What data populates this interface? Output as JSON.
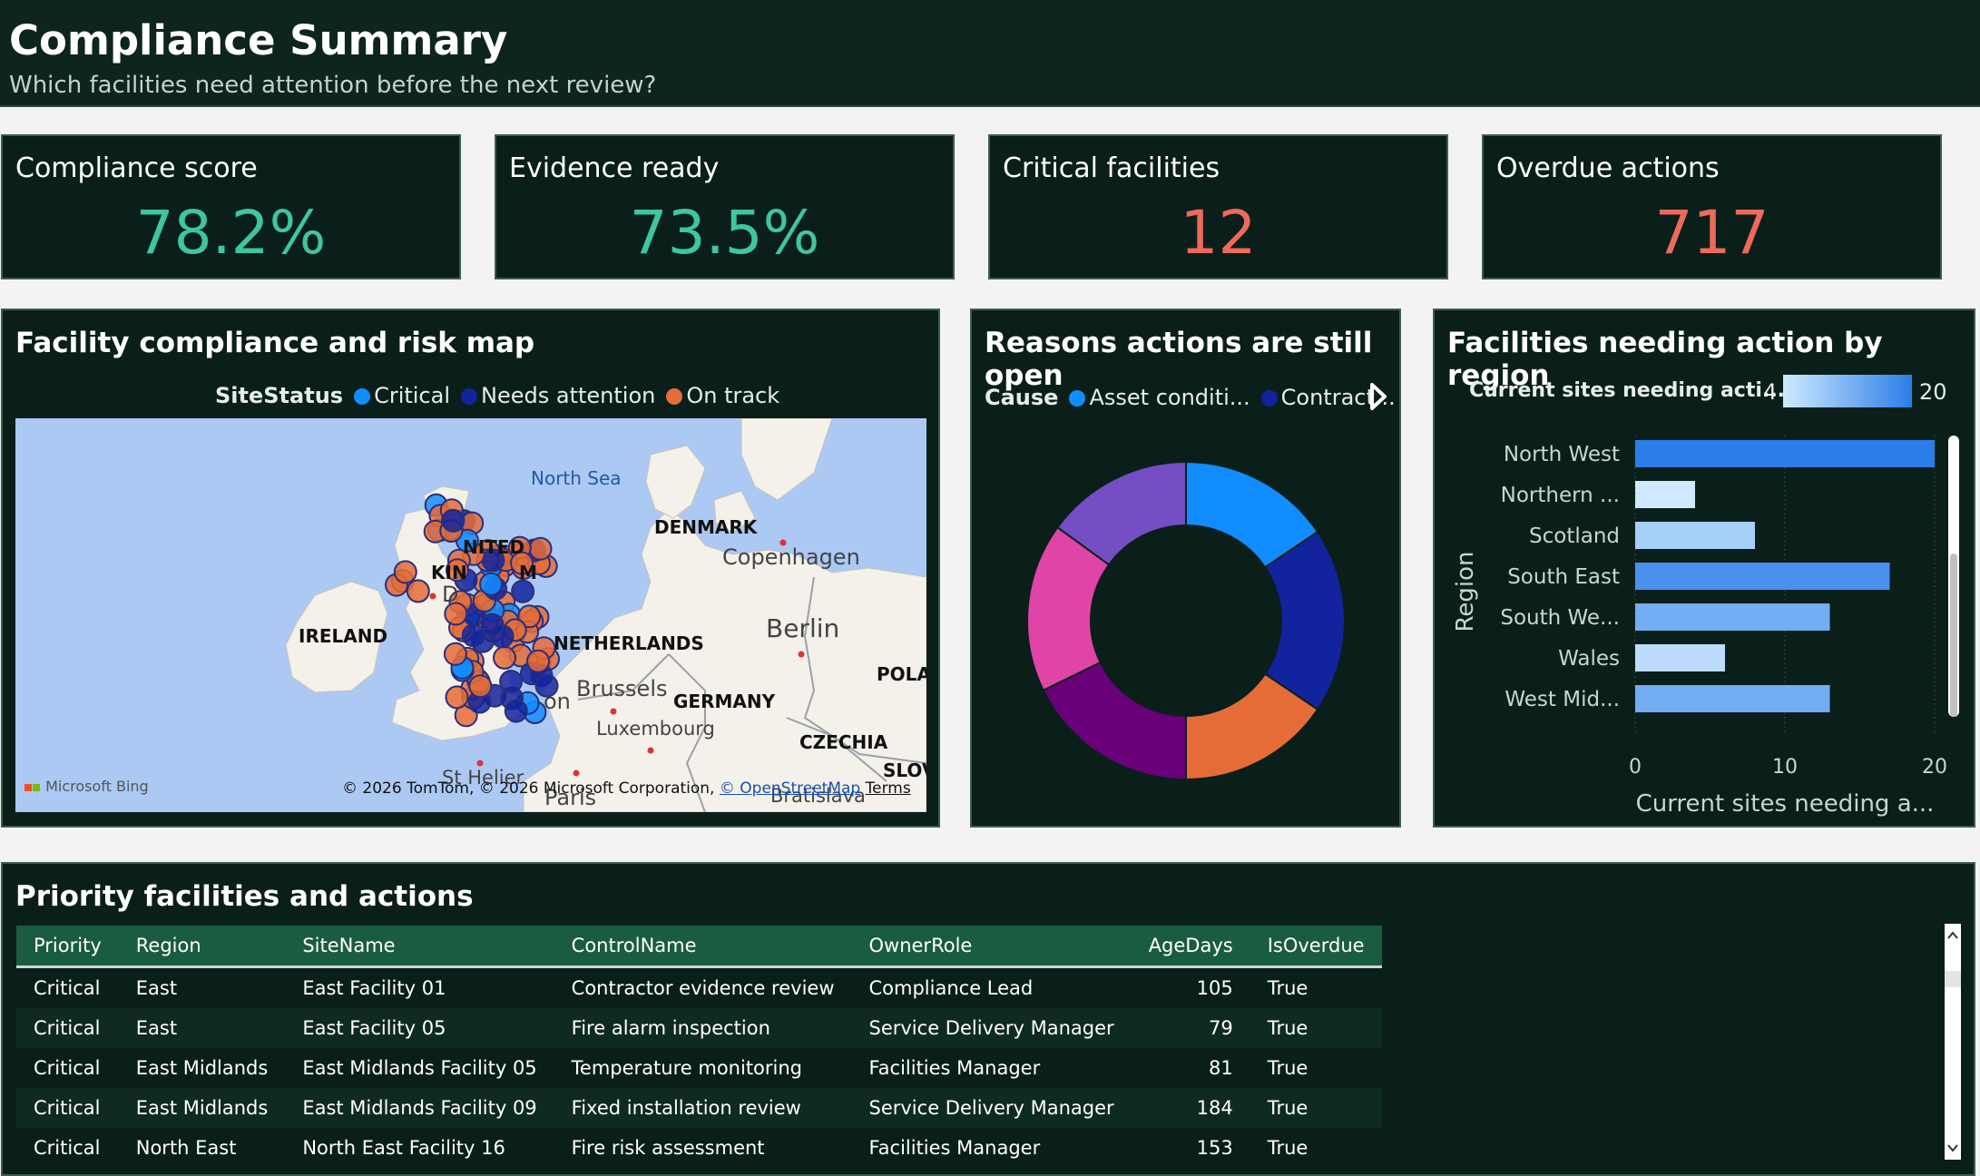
{
  "header": {
    "title": "Compliance Summary",
    "subtitle": "Which facilities need attention before the next review?"
  },
  "kpis": [
    {
      "label": "Compliance score",
      "value": "78.2%",
      "color": "#3ec6a0"
    },
    {
      "label": "Evidence ready",
      "value": "73.5%",
      "color": "#3ec6a0"
    },
    {
      "label": "Critical facilities",
      "value": "12",
      "color": "#ee6a5a"
    },
    {
      "label": "Overdue actions",
      "value": "717",
      "color": "#ee6a5a"
    }
  ],
  "map_panel": {
    "title": "Facility compliance and risk map",
    "legend_title": "SiteStatus",
    "legend": [
      {
        "label": "Critical",
        "color": "#118dff"
      },
      {
        "label": "Needs attention",
        "color": "#12239e"
      },
      {
        "label": "On track",
        "color": "#e66c37"
      }
    ],
    "places": {
      "sea": "North Sea",
      "denmark": "DENMARK",
      "copenhagen": "Copenhagen",
      "berlin": "Berlin",
      "ireland": "IRELAND",
      "netherlands": "NETHERLANDS",
      "germany": "GERMANY",
      "brussels": "Brussels",
      "luxembourg": "Luxembourg",
      "czechia": "CZECHIA",
      "pola": "POLA",
      "slov": "SLOV",
      "paris": "Paris",
      "st_helier": "St Helier",
      "bratislava": "Bratislava",
      "united": "NITED",
      "kingdom": "KIN",
      "kingdom2": "M",
      "london": "on",
      "dublin": "D"
    },
    "bing": "Microsoft Bing",
    "copyright": "© 2026 TomTom, © 2026 Microsoft Corporation,",
    "osm": "© OpenStreetMap",
    "terms": "Terms"
  },
  "donut_panel": {
    "title": "Reasons actions are still open",
    "legend_title": "Cause",
    "legend": [
      {
        "label": "Asset conditi...",
        "color": "#118dff"
      },
      {
        "label": "Contract...",
        "color": "#12239e"
      }
    ],
    "colors": [
      "#118dff",
      "#12239e",
      "#e66c37",
      "#6b007b",
      "#e044a7",
      "#744ec2"
    ]
  },
  "bar_panel": {
    "title": "Facilities needing action by region",
    "gradient_label": "Current sites needing acti...",
    "gradient_min": "4",
    "gradient_max": "20",
    "scroll_position": 0.42
  },
  "chart_data": {
    "type": "bar",
    "orientation": "horizontal",
    "ylabel": "Region",
    "xlabel": "Current sites needing a...",
    "categories": [
      "North West",
      "Northern ...",
      "Scotland",
      "South East",
      "South We...",
      "Wales",
      "West Mid..."
    ],
    "values": [
      20,
      4,
      8,
      17,
      13,
      6,
      13
    ],
    "xlim": [
      0,
      20
    ],
    "xticks": [
      "0",
      "10",
      "20"
    ],
    "color_scale": [
      "#cfeaff",
      "#2b7de9"
    ]
  },
  "table_panel": {
    "title": "Priority facilities and actions",
    "columns": [
      "Priority",
      "Region",
      "SiteName",
      "ControlName",
      "OwnerRole",
      "AgeDays",
      "IsOverdue"
    ],
    "rows": [
      [
        "Critical",
        "East",
        "East Facility 01",
        "Contractor evidence review",
        "Compliance Lead",
        "105",
        "True"
      ],
      [
        "Critical",
        "East",
        "East Facility 05",
        "Fire alarm inspection",
        "Service Delivery Manager",
        "79",
        "True"
      ],
      [
        "Critical",
        "East Midlands",
        "East Midlands Facility 05",
        "Temperature monitoring",
        "Facilities Manager",
        "81",
        "True"
      ],
      [
        "Critical",
        "East Midlands",
        "East Midlands Facility 09",
        "Fixed installation review",
        "Service Delivery Manager",
        "184",
        "True"
      ],
      [
        "Critical",
        "North East",
        "North East Facility 16",
        "Fire risk assessment",
        "Facilities Manager",
        "153",
        "True"
      ]
    ]
  }
}
